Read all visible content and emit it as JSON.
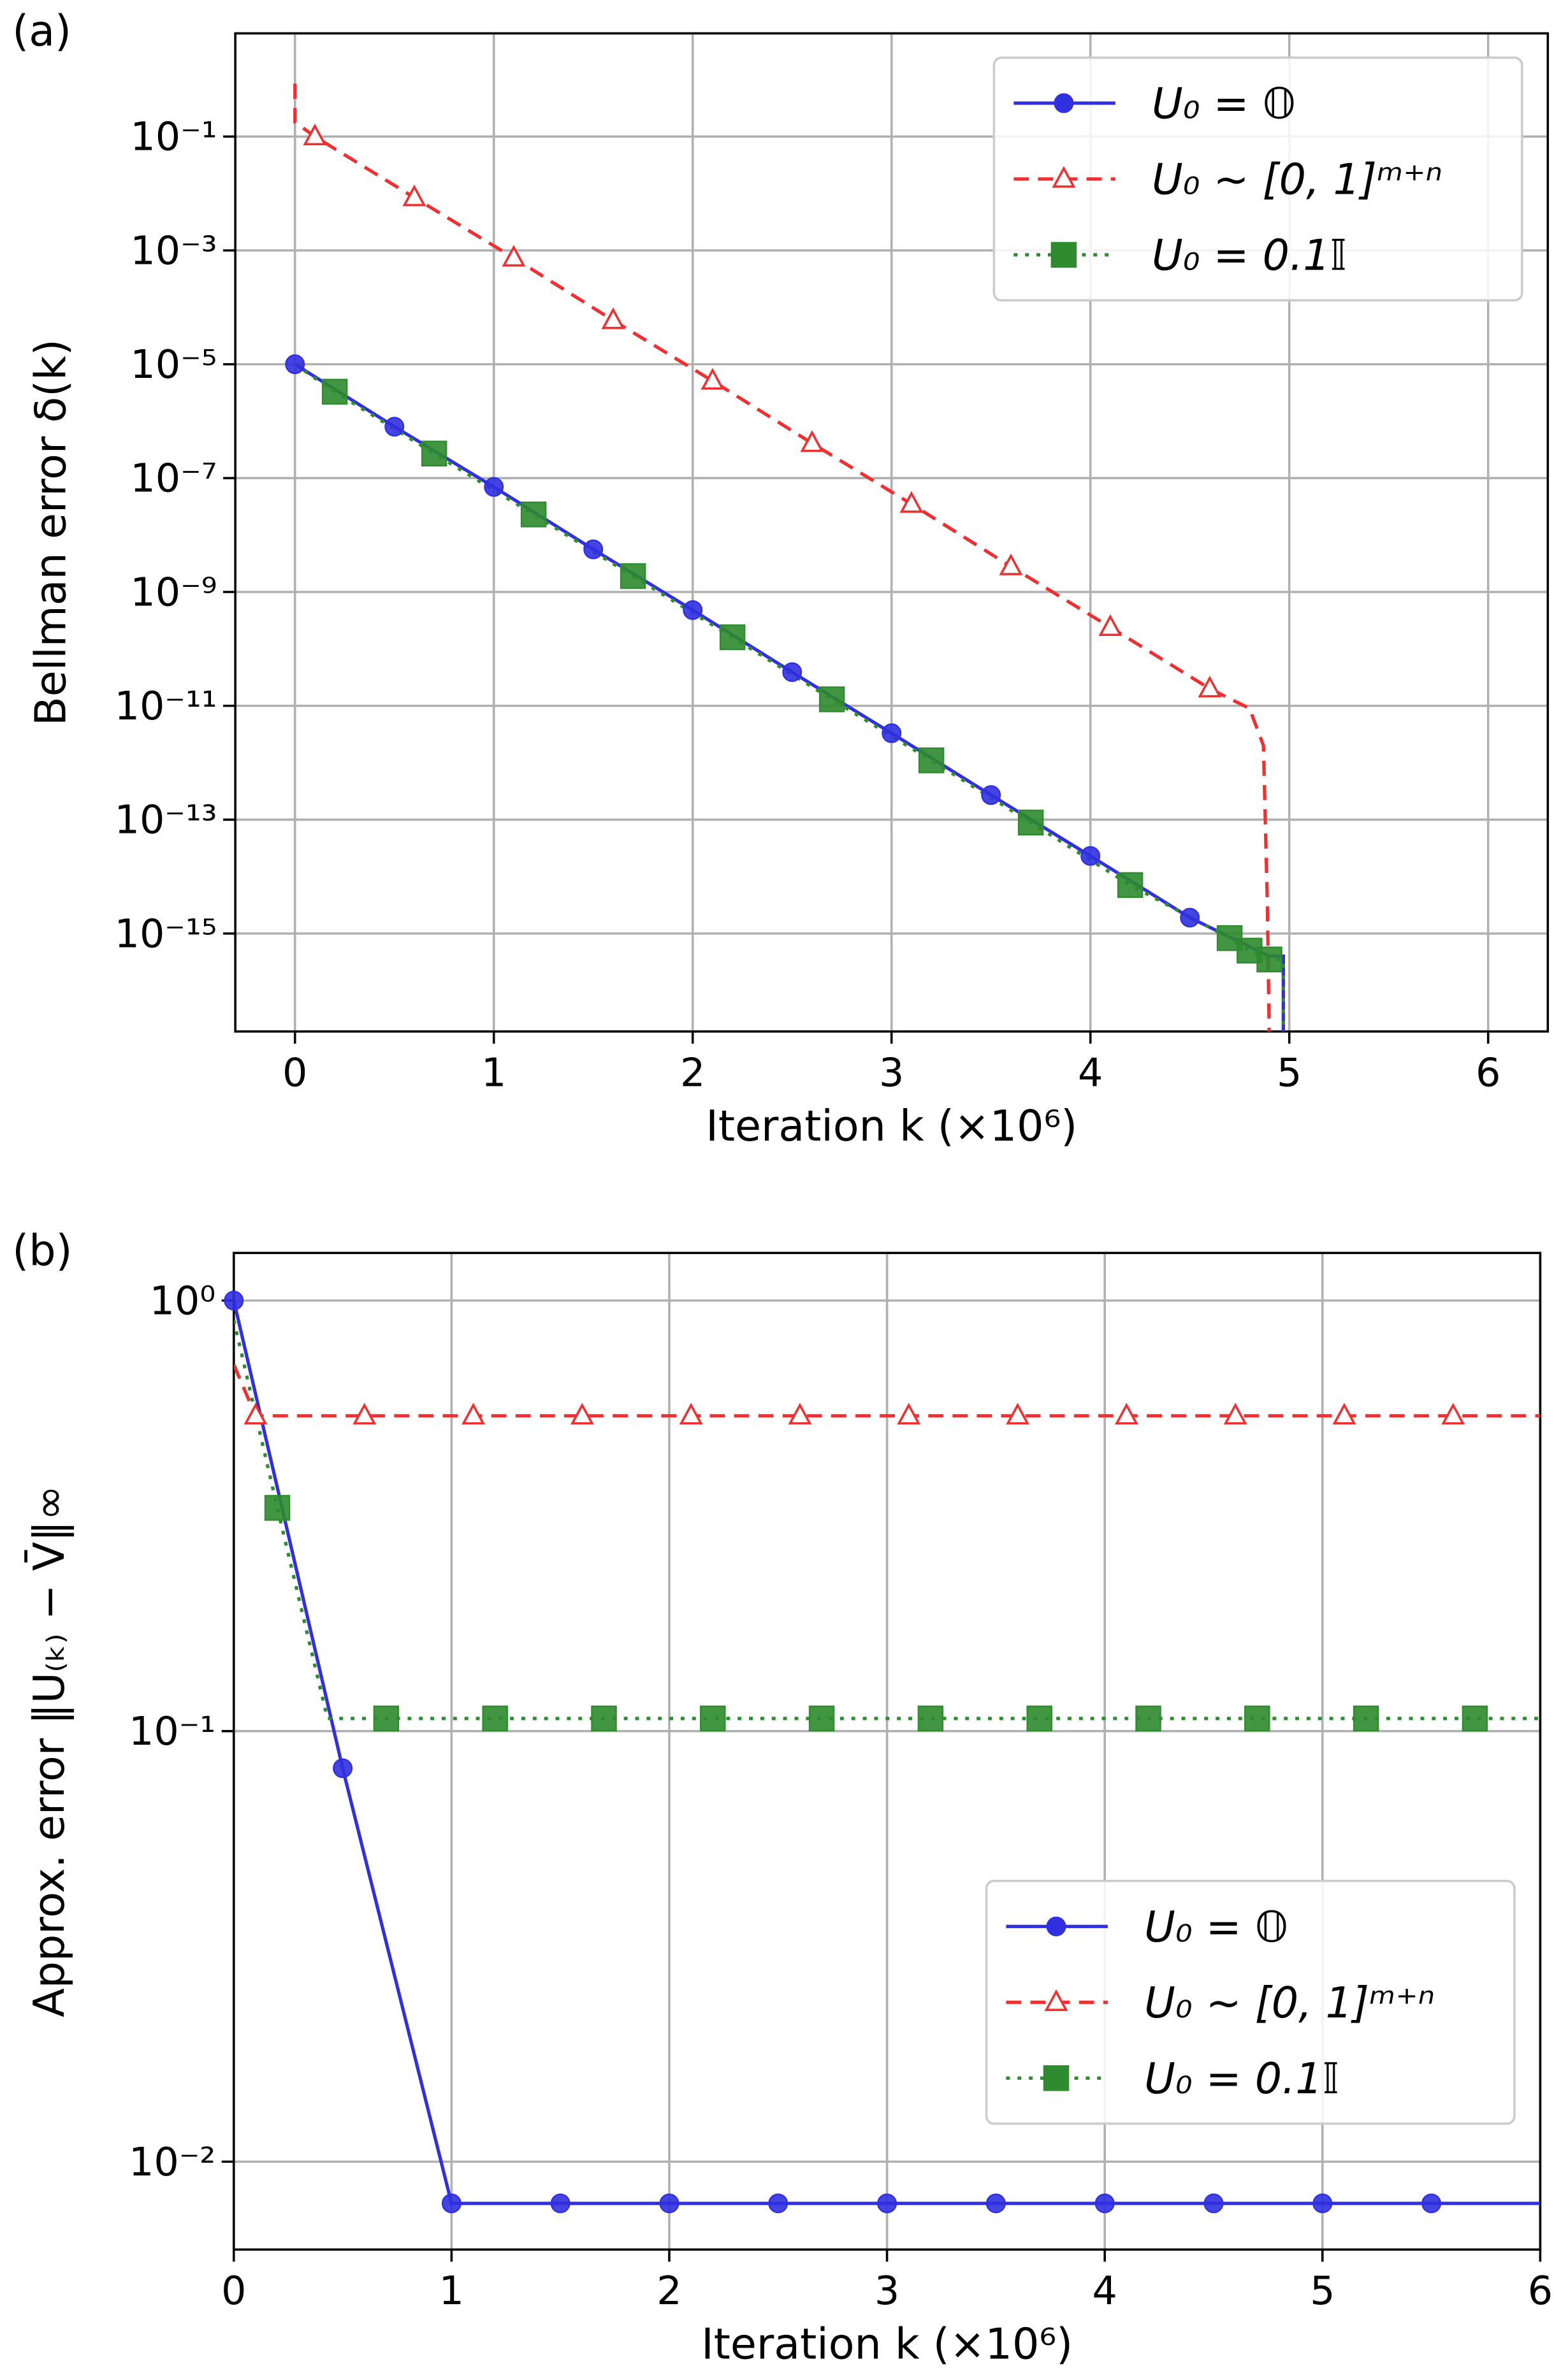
{
  "chart_data": [
    {
      "type": "line",
      "panel_label": "(a)",
      "xlabel": "Iteration k (×10⁶)",
      "ylabel": "Bellman error δ(k)",
      "log_y": true,
      "grid": true,
      "legend": "upper right",
      "xlim": [
        -0.3,
        6.3
      ],
      "xticks": [
        0,
        1,
        2,
        3,
        4,
        5,
        6
      ],
      "ylim": [
        1.9e-17,
        6.5
      ],
      "yticks": [
        {
          "value": 0.1,
          "label": "10⁻¹"
        },
        {
          "value": 0.001,
          "label": "10⁻³"
        },
        {
          "value": 1e-05,
          "label": "10⁻⁵"
        },
        {
          "value": 1e-07,
          "label": "10⁻⁷"
        },
        {
          "value": 1e-09,
          "label": "10⁻⁹"
        },
        {
          "value": 1e-11,
          "label": "10⁻¹¹"
        },
        {
          "value": 1e-13,
          "label": "10⁻¹³"
        },
        {
          "value": 1e-15,
          "label": "10⁻¹⁵"
        }
      ],
      "series": [
        {
          "name": "U₀ = 𝕆",
          "color": "#3030e0",
          "linestyle": "solid",
          "marker": "circle",
          "x": [
            0,
            0.5,
            1,
            1.5,
            2,
            2.5,
            3,
            3.5,
            4,
            4.5,
            4.9,
            4.97,
            4.97
          ],
          "values": [
            1e-05,
            8e-07,
            7e-08,
            5.6e-09,
            4.8e-10,
            3.9e-11,
            3.3e-12,
            2.7e-13,
            2.3e-14,
            1.9e-15,
            4e-16,
            4e-16,
            1e-17
          ],
          "markevery": [
            0,
            1,
            2,
            3,
            4,
            5,
            6,
            7,
            8,
            9
          ]
        },
        {
          "name": "U₀ ∼ [0, 1]ᵐ⁺ⁿ",
          "color": "#f03030",
          "linestyle": "dashed",
          "marker": "triangle",
          "x": [
            0,
            0,
            0.1,
            0.6,
            1.1,
            1.6,
            2.1,
            2.6,
            3.1,
            3.6,
            4.1,
            4.6,
            4.8,
            4.87,
            4.89,
            4.9
          ],
          "values": [
            0.85,
            0.18,
            0.1,
            0.0085,
            0.00074,
            5.9e-05,
            5.1e-06,
            4.1e-07,
            3.5e-08,
            2.8e-09,
            2.4e-10,
            2e-11,
            9e-12,
            2e-12,
            3e-15,
            1e-17
          ],
          "markevery": [
            2,
            3,
            4,
            5,
            6,
            7,
            8,
            9,
            10,
            11
          ]
        },
        {
          "name": "U₀ = 0.1𝕀",
          "color": "#2e8b2e",
          "linestyle": "dotted",
          "marker": "square",
          "x": [
            0,
            0.2,
            0.7,
            1.2,
            1.7,
            2.2,
            2.7,
            3.2,
            3.7,
            4.2,
            4.7,
            4.8,
            4.9,
            4.97,
            4.97
          ],
          "values": [
            1e-05,
            3.3e-06,
            2.7e-07,
            2.3e-08,
            1.9e-09,
            1.6e-10,
            1.3e-11,
            1.1e-12,
            8.9e-14,
            7.1e-15,
            8.3e-16,
            5e-16,
            3.5e-16,
            3.5e-16,
            1e-17
          ],
          "markevery": [
            1,
            2,
            3,
            4,
            5,
            6,
            7,
            8,
            9,
            10,
            11,
            12
          ]
        }
      ]
    },
    {
      "type": "line",
      "panel_label": "(b)",
      "xlabel": "Iteration k (×10⁶)",
      "ylabel": "Approx. error ‖U₍ₖ₎ − V̄‖∞",
      "log_y": true,
      "grid": true,
      "legend": "lower right",
      "xlim": [
        0,
        6
      ],
      "xticks": [
        0,
        1,
        2,
        3,
        4,
        5,
        6
      ],
      "ylim": [
        0.00625,
        1.29
      ],
      "yticks": [
        {
          "value": 1,
          "label": "10⁰"
        },
        {
          "value": 0.1,
          "label": "10⁻¹"
        },
        {
          "value": 0.01,
          "label": "10⁻²"
        }
      ],
      "series": [
        {
          "name": "U₀ = 𝕆",
          "color": "#3030e0",
          "linestyle": "solid",
          "marker": "circle",
          "x": [
            0,
            0.5,
            1,
            1.5,
            2,
            2.5,
            3,
            3.5,
            4,
            4.5,
            5,
            5.5,
            6
          ],
          "values": [
            1.0,
            0.082,
            0.008,
            0.008,
            0.008,
            0.008,
            0.008,
            0.008,
            0.008,
            0.008,
            0.008,
            0.008,
            0.008
          ],
          "markevery": [
            0,
            1,
            2,
            3,
            4,
            5,
            6,
            7,
            8,
            9,
            10,
            11
          ]
        },
        {
          "name": "U₀ ∼ [0, 1]ᵐ⁺ⁿ",
          "color": "#f03030",
          "linestyle": "dashed",
          "marker": "triangle",
          "x": [
            0,
            0.1,
            0.6,
            1.1,
            1.6,
            2.1,
            2.6,
            3.1,
            3.6,
            4.1,
            4.6,
            5.1,
            5.6,
            6
          ],
          "values": [
            0.71,
            0.54,
            0.54,
            0.54,
            0.54,
            0.54,
            0.54,
            0.54,
            0.54,
            0.54,
            0.54,
            0.54,
            0.54,
            0.54
          ],
          "markevery": [
            1,
            2,
            3,
            4,
            5,
            6,
            7,
            8,
            9,
            10,
            11,
            12
          ]
        },
        {
          "name": "U₀ = 0.1𝕀",
          "color": "#2e8b2e",
          "linestyle": "dotted",
          "marker": "square",
          "x": [
            0,
            0.2,
            0.43,
            0.7,
            1.2,
            1.7,
            2.2,
            2.7,
            3.2,
            3.7,
            4.2,
            4.7,
            5.2,
            5.7,
            6
          ],
          "values": [
            0.9,
            0.33,
            0.107,
            0.107,
            0.107,
            0.107,
            0.107,
            0.107,
            0.107,
            0.107,
            0.107,
            0.107,
            0.107,
            0.107,
            0.107
          ],
          "markevery": [
            1,
            3,
            4,
            5,
            6,
            7,
            8,
            9,
            10,
            11,
            12,
            13
          ]
        }
      ]
    }
  ]
}
